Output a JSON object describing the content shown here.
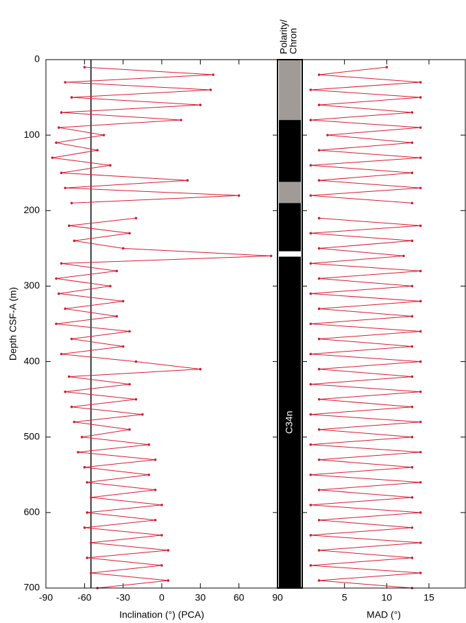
{
  "chart_data": [
    {
      "type": "line",
      "xlabel": "Inclination (°) (PCA)",
      "ylabel": "Depth CSF-A (m)",
      "xlim": [
        -90,
        90
      ],
      "xticks": [
        -90,
        -60,
        -30,
        0,
        30,
        60,
        90
      ],
      "ylim": [
        0,
        700
      ],
      "yticks": [
        0,
        100,
        200,
        300,
        400,
        500,
        600,
        700
      ],
      "color": "#d7192e",
      "reference_line": -55,
      "depth": [
        10,
        20,
        30,
        40,
        50,
        60,
        70,
        80,
        90,
        100,
        110,
        120,
        130,
        140,
        150,
        160,
        170,
        180,
        190,
        200,
        210,
        220,
        230,
        240,
        250,
        260,
        270,
        280,
        290,
        300,
        310,
        320,
        330,
        340,
        350,
        360,
        370,
        380,
        390,
        400,
        410,
        420,
        430,
        440,
        450,
        460,
        470,
        480,
        490,
        500,
        510,
        520,
        530,
        540,
        550,
        560,
        570,
        580,
        590,
        600,
        610,
        620,
        630,
        640,
        650,
        660,
        670,
        680,
        690,
        700
      ],
      "values": [
        -60,
        40,
        -75,
        38,
        -70,
        30,
        -78,
        15,
        -80,
        -45,
        -82,
        -50,
        -85,
        -40,
        -78,
        20,
        -75,
        60,
        -70,
        null,
        -20,
        -72,
        -25,
        -68,
        -30,
        85,
        -78,
        -35,
        -82,
        -40,
        -80,
        -30,
        -75,
        -35,
        -82,
        -25,
        -70,
        -30,
        -78,
        -20,
        30,
        -72,
        -25,
        -75,
        -20,
        -70,
        -15,
        -68,
        -25,
        -62,
        -10,
        -65,
        -5,
        -60,
        -10,
        -58,
        -5,
        -55,
        0,
        -58,
        -5,
        -60,
        0,
        -55,
        5,
        -58,
        0,
        -55,
        5,
        -50
      ]
    },
    {
      "type": "polarity",
      "title_lines": [
        "Polarity/",
        "Chron"
      ],
      "label": "C34n",
      "ylim": [
        0,
        700
      ],
      "intervals": [
        {
          "top": 0,
          "base": 80,
          "color": "#a09b97"
        },
        {
          "top": 80,
          "base": 162,
          "color": "#000000"
        },
        {
          "top": 162,
          "base": 190,
          "color": "#a09b97"
        },
        {
          "top": 190,
          "base": 254,
          "color": "#000000"
        },
        {
          "top": 254,
          "base": 261,
          "color": "#ffffff"
        },
        {
          "top": 261,
          "base": 700,
          "color": "#000000"
        }
      ]
    },
    {
      "type": "line",
      "xlabel": "MAD (°)",
      "xlim": [
        0,
        19.3
      ],
      "xticks": [
        5,
        10,
        15
      ],
      "ylim": [
        0,
        700
      ],
      "yticks": [
        0,
        100,
        200,
        300,
        400,
        500,
        600,
        700
      ],
      "color": "#d7192e",
      "depth": [
        10,
        20,
        30,
        40,
        50,
        60,
        70,
        80,
        90,
        100,
        110,
        120,
        130,
        140,
        150,
        160,
        170,
        180,
        190,
        200,
        210,
        220,
        230,
        240,
        250,
        260,
        270,
        280,
        290,
        300,
        310,
        320,
        330,
        340,
        350,
        360,
        370,
        380,
        390,
        400,
        410,
        420,
        430,
        440,
        450,
        460,
        470,
        480,
        490,
        500,
        510,
        520,
        530,
        540,
        550,
        560,
        570,
        580,
        590,
        600,
        610,
        620,
        630,
        640,
        650,
        660,
        670,
        680,
        690,
        700
      ],
      "values": [
        10,
        2,
        14,
        1,
        14,
        2,
        13,
        1,
        14,
        3,
        13,
        2,
        14,
        1,
        13,
        2,
        14,
        1,
        13,
        null,
        2,
        14,
        1,
        13,
        2,
        12,
        1,
        14,
        2,
        13,
        1,
        14,
        2,
        13,
        1,
        14,
        2,
        13,
        1,
        14,
        2,
        13,
        1,
        14,
        2,
        13,
        1,
        14,
        2,
        13,
        1,
        14,
        2,
        13,
        1,
        14,
        2,
        13,
        1,
        14,
        2,
        13,
        1,
        14,
        2,
        13,
        1,
        14,
        2,
        13
      ]
    }
  ]
}
